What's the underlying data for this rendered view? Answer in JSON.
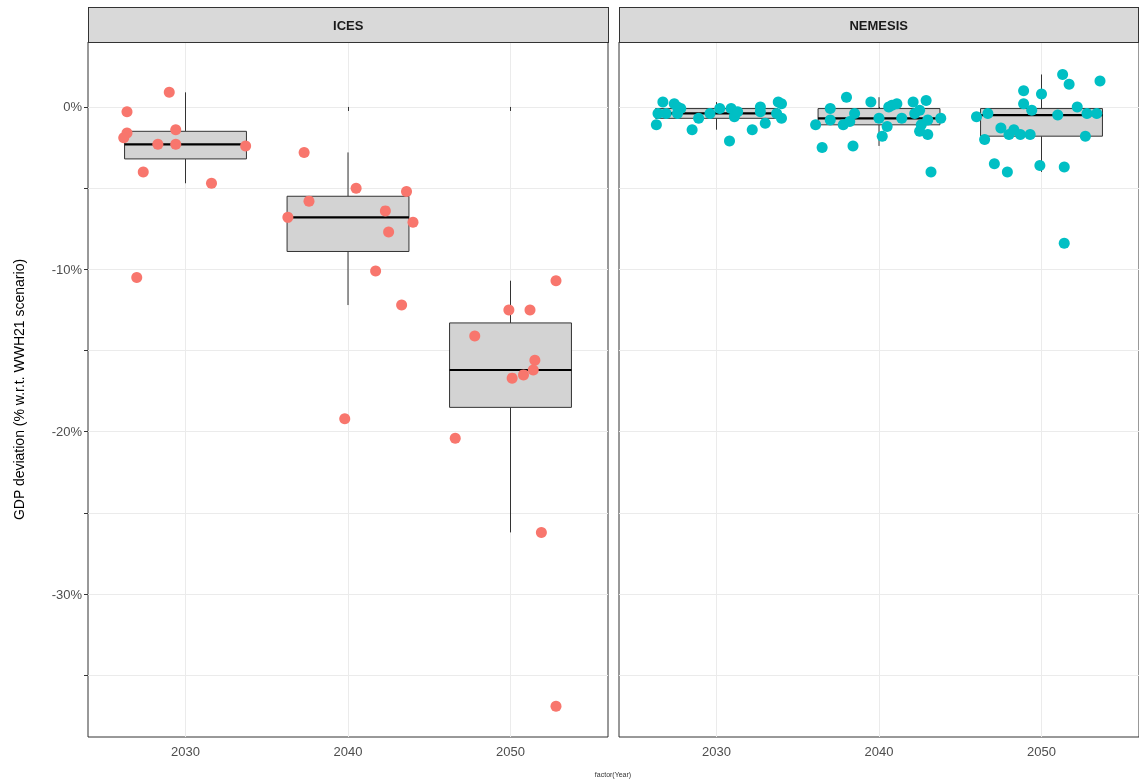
{
  "chart_data": [
    {
      "type": "box",
      "title": "ICES",
      "xlabel": "factor(Year)",
      "ylabel": "GDP deviation (% w.r.t. WWH21 scenario)",
      "series": [
        {
          "color": "#d3d3d3",
          "x": [
            2030,
            2040,
            2050
          ],
          "boxes": [
            {
              "low": -4.7,
              "q1": -3.2,
              "median": -2.3,
              "q3": -1.5,
              "high": 0.9
            },
            {
              "low": -12.2,
              "q1": -8.9,
              "median": -6.8,
              "q3": -5.5,
              "high": -2.8
            },
            {
              "low": -26.2,
              "q1": -18.5,
              "median": -16.2,
              "q3": -13.3,
              "high": -10.7
            }
          ]
        },
        {
          "type": "scatter",
          "color": "#f8766d",
          "x": [
            2029.0,
            2026.4,
            2029.4,
            2026.4,
            2026.2,
            2028.3,
            2029.4,
            2033.7,
            2027.4,
            2031.6,
            2027.0,
            2037.3,
            2040.5,
            2043.6,
            2037.6,
            2042.3,
            2036.3,
            2044.0,
            2042.5,
            2041.7,
            2043.3,
            2039.8,
            2052.8,
            2049.9,
            2051.2,
            2047.8,
            2051.5,
            2051.4,
            2050.8,
            2050.1,
            2046.6,
            2051.9,
            2052.8
          ],
          "values": [
            0.9,
            -0.3,
            -1.4,
            -1.6,
            -1.9,
            -2.3,
            -2.3,
            -2.4,
            -4.0,
            -4.7,
            -10.5,
            -2.8,
            -5.0,
            -5.2,
            -5.8,
            -6.4,
            -6.8,
            -7.1,
            -7.7,
            -10.1,
            -12.2,
            -19.2,
            -10.7,
            -12.5,
            -12.5,
            -14.1,
            -15.6,
            -16.2,
            -16.5,
            -16.7,
            -20.4,
            -26.2,
            -36.9
          ]
        }
      ],
      "xlim": [
        2024,
        2056
      ],
      "xticks": [
        2030,
        2040,
        2050
      ],
      "ylim": [
        -38.8,
        4.0
      ],
      "yticks": [
        {
          "value": -35,
          "label": null
        },
        {
          "value": -30,
          "label": "-30%"
        },
        {
          "value": -25,
          "label": null
        },
        {
          "value": -20,
          "label": "-20%"
        },
        {
          "value": -15,
          "label": null
        },
        {
          "value": -10,
          "label": "-10%"
        },
        {
          "value": -5,
          "label": null
        },
        {
          "value": 0,
          "label": "0%"
        }
      ],
      "grid": true,
      "marker": "circle"
    },
    {
      "type": "box",
      "title": "NEMESIS",
      "series": [
        {
          "color": "#d3d3d3",
          "x": [
            2030,
            2040,
            2050
          ],
          "boxes": [
            {
              "low": -1.4,
              "q1": -0.7,
              "median": -0.4,
              "q3": -0.1,
              "high": 0.3
            },
            {
              "low": -2.4,
              "q1": -1.1,
              "median": -0.7,
              "q3": -0.1,
              "high": 0.6
            },
            {
              "low": -4.0,
              "q1": -1.8,
              "median": -0.5,
              "q3": -0.1,
              "high": 2.0
            }
          ]
        },
        {
          "type": "scatter",
          "color": "#00bfc4",
          "x": [
            2026.7,
            2026.3,
            2026.4,
            2026.9,
            2027.4,
            2027.6,
            2027.8,
            2027.6,
            2028.5,
            2028.9,
            2029.6,
            2030.2,
            2030.8,
            2030.9,
            2031.1,
            2031.3,
            2032.2,
            2032.7,
            2032.7,
            2033.0,
            2033.8,
            2034.0,
            2033.7,
            2034.0,
            2036.1,
            2036.5,
            2037.0,
            2037.0,
            2038.0,
            2038.4,
            2037.8,
            2038.2,
            2038.5,
            2039.5,
            2040.0,
            2040.2,
            2040.5,
            2040.6,
            2040.8,
            2041.1,
            2041.4,
            2042.1,
            2042.2,
            2042.5,
            2042.9,
            2042.6,
            2042.5,
            2043.0,
            2043.0,
            2043.2,
            2043.8,
            2046.0,
            2046.5,
            2046.7,
            2047.1,
            2047.5,
            2047.9,
            2048.0,
            2048.3,
            2048.7,
            2048.9,
            2048.9,
            2049.3,
            2049.4,
            2049.9,
            2050.0,
            2051.0,
            2051.3,
            2051.7,
            2051.4,
            2051.4,
            2052.2,
            2052.7,
            2052.8,
            2053.4,
            2053.6
          ],
          "values": [
            0.3,
            -1.1,
            -0.4,
            -0.4,
            0.2,
            0,
            -0.1,
            -0.4,
            -1.4,
            -0.7,
            -0.4,
            -0.1,
            -2.1,
            -0.1,
            -0.6,
            -0.3,
            -1.4,
            0,
            -0.3,
            -1.0,
            0.3,
            0.2,
            -0.4,
            -0.7,
            -1.1,
            -2.5,
            -0.1,
            -0.8,
            0.6,
            -2.4,
            -1.1,
            -0.9,
            -0.4,
            0.3,
            -0.7,
            -1.8,
            -1.2,
            0,
            0.1,
            0.2,
            -0.7,
            0.3,
            -0.4,
            -0.2,
            0.4,
            -1.1,
            -1.5,
            -0.8,
            -1.7,
            -4.0,
            -0.7,
            -0.6,
            -2.0,
            -0.4,
            -3.5,
            -1.3,
            -4.0,
            -1.7,
            -1.4,
            -1.7,
            0.2,
            1.0,
            -1.7,
            -0.2,
            -3.6,
            0.8,
            -0.5,
            2.0,
            1.4,
            -3.7,
            -8.4,
            0,
            -1.8,
            -0.4,
            -0.4,
            1.6
          ]
        }
      ],
      "xlim": [
        2024,
        2056
      ],
      "xticks": [
        2030,
        2040,
        2050
      ],
      "ylim": [
        -38.8,
        4.0
      ],
      "yticks": [
        -35,
        -30,
        -25,
        -20,
        -15,
        -10,
        -5,
        0
      ],
      "grid": true,
      "marker": "circle",
      "tick_labels": "x"
    }
  ]
}
